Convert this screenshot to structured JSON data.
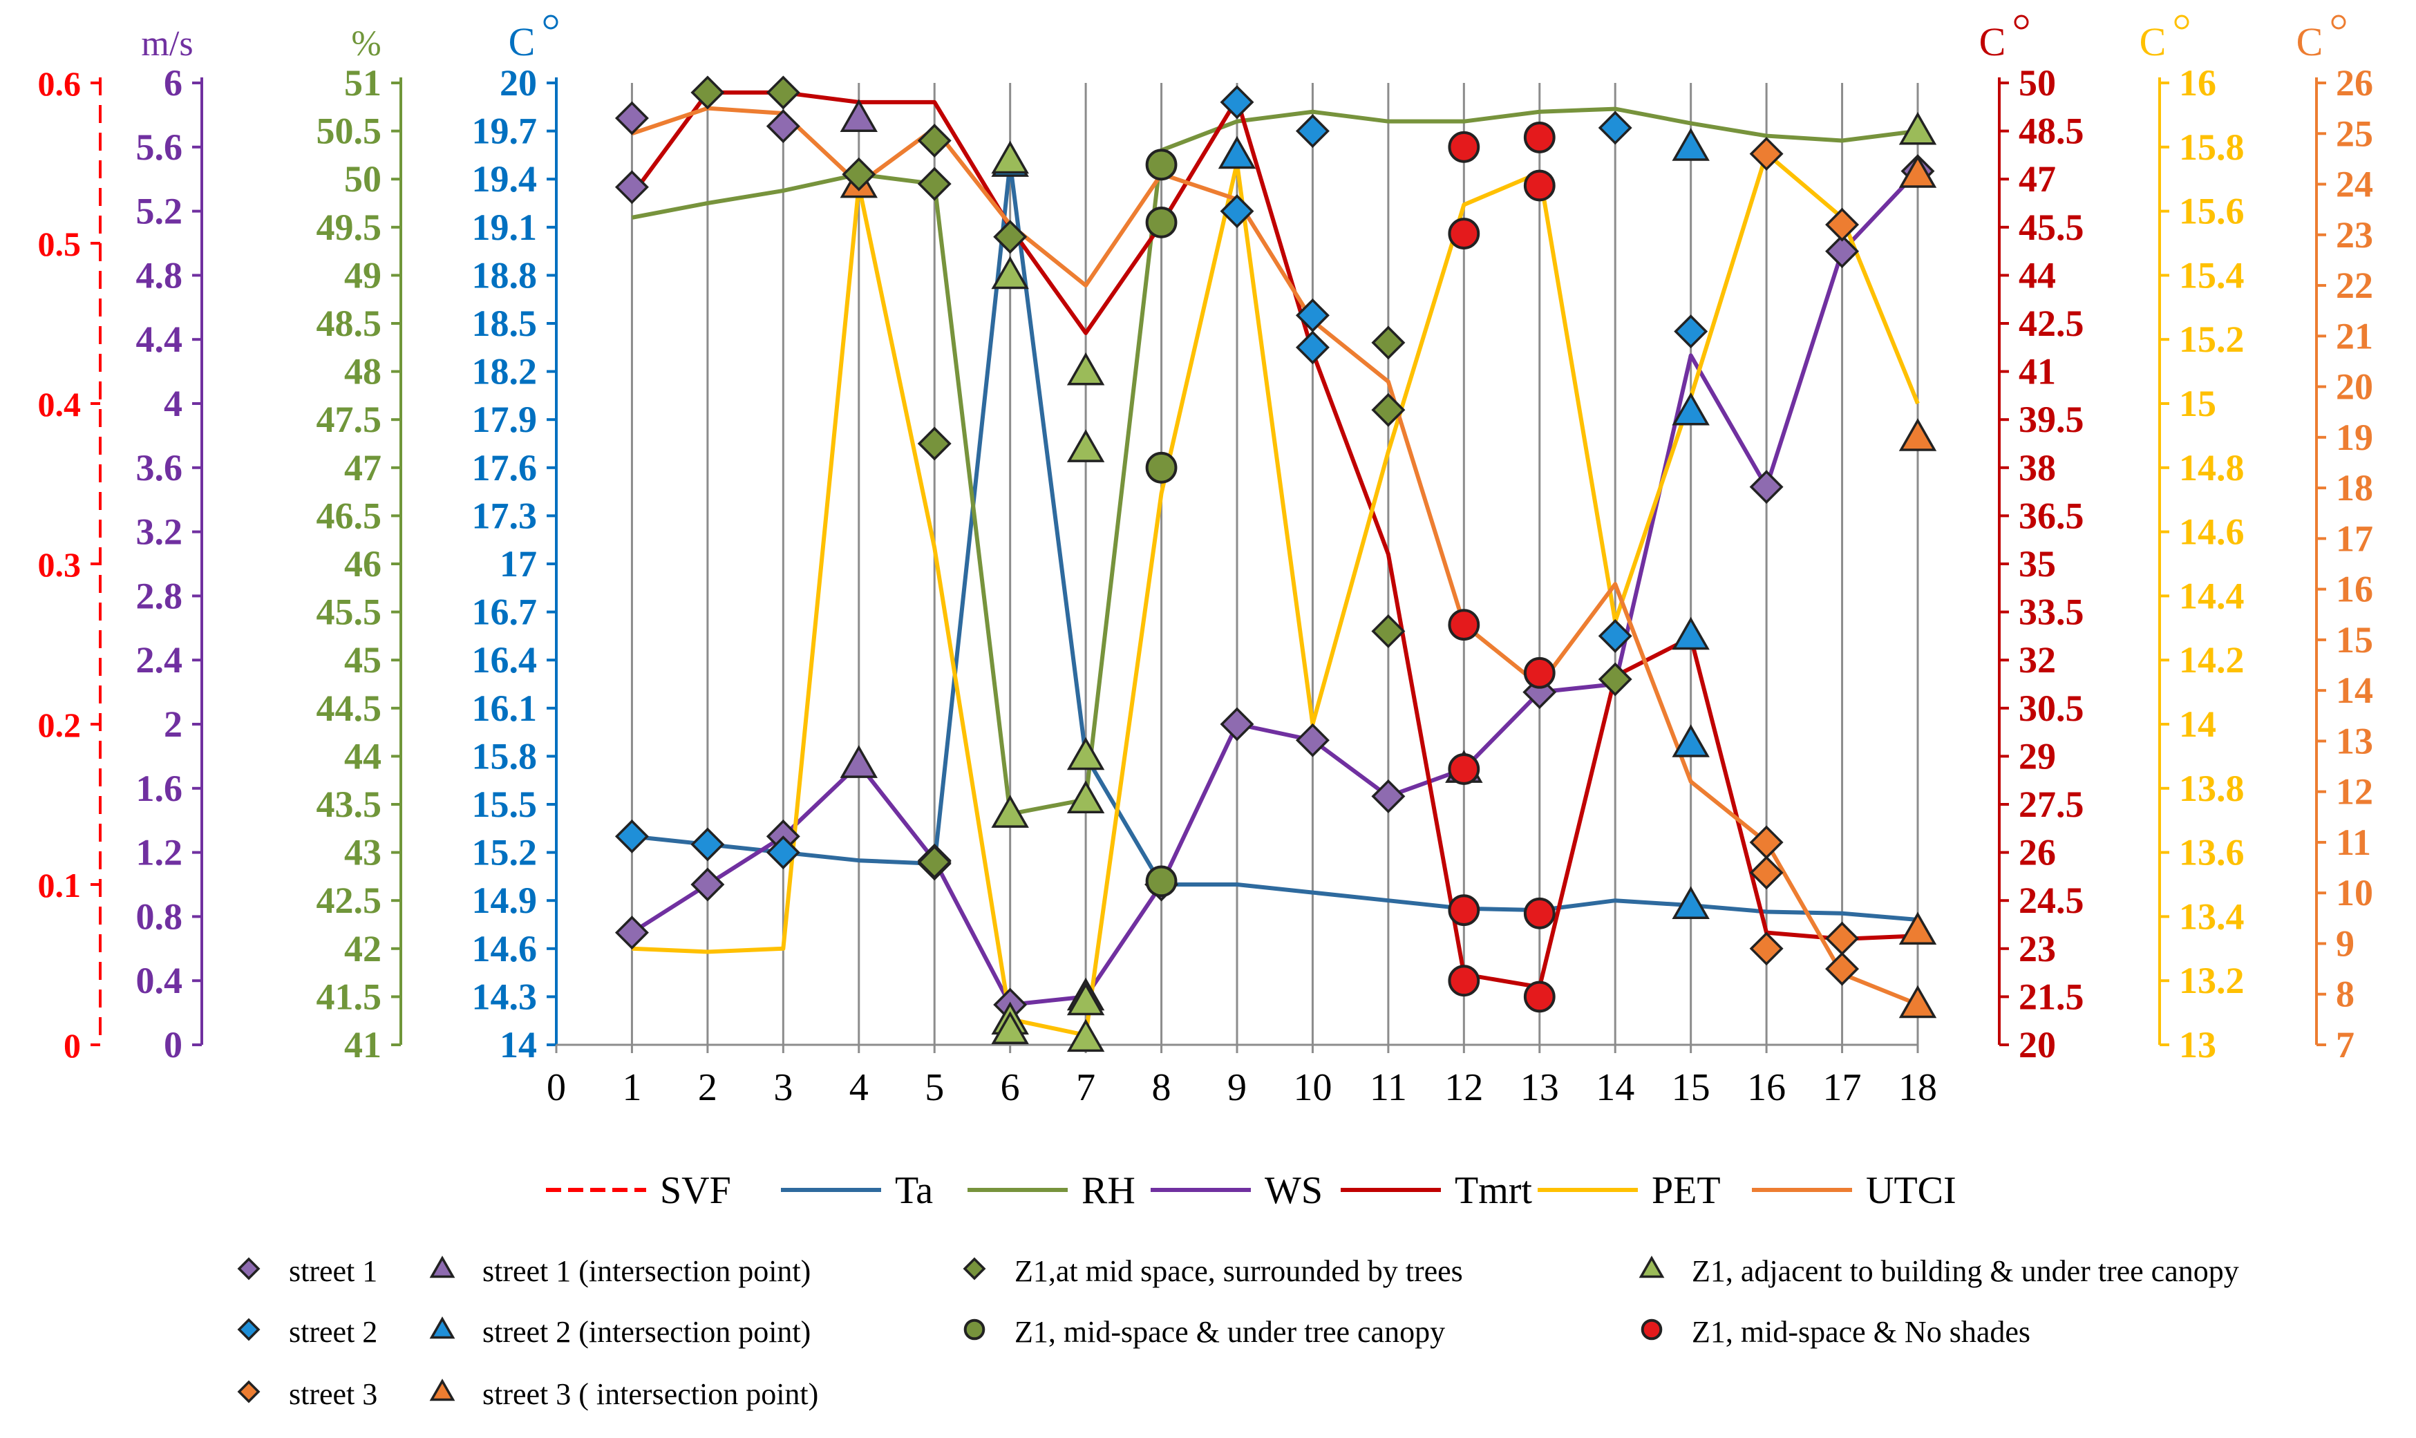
{
  "chart_data": {
    "type": "line",
    "x": [
      1,
      2,
      3,
      4,
      5,
      6,
      7,
      8,
      9,
      10,
      11,
      12,
      13,
      14,
      15,
      16,
      17,
      18
    ],
    "xticks": [
      "0",
      "1",
      "2",
      "3",
      "4",
      "5",
      "6",
      "7",
      "8",
      "9",
      "10",
      "11",
      "12",
      "13",
      "14",
      "15",
      "16",
      "17",
      "18"
    ],
    "xlim": [
      0,
      18
    ],
    "axes": [
      {
        "id": "svf",
        "label": "",
        "side": "left",
        "color": "#ff0000",
        "dashed": true,
        "min": 0,
        "max": 0.6,
        "ticks": [
          "0",
          "0.1",
          "0.2",
          "0.3",
          "0.4",
          "0.5",
          "0.6"
        ]
      },
      {
        "id": "ws",
        "label": "m/s",
        "side": "left",
        "color": "#7030a0",
        "dashed": false,
        "min": 0,
        "max": 6,
        "ticks": [
          "0",
          "0.4",
          "0.8",
          "1.2",
          "1.6",
          "2",
          "2.4",
          "2.8",
          "3.2",
          "3.6",
          "4",
          "4.4",
          "4.8",
          "5.2",
          "5.6",
          "6"
        ]
      },
      {
        "id": "rh",
        "label": "%",
        "side": "left",
        "color": "#70963a",
        "dashed": false,
        "min": 41,
        "max": 51,
        "ticks": [
          "41",
          "41.5",
          "42",
          "42.5",
          "43",
          "43.5",
          "44",
          "44.5",
          "45",
          "45.5",
          "46",
          "46.5",
          "47",
          "47.5",
          "48",
          "48.5",
          "49",
          "49.5",
          "50",
          "50.5",
          "51"
        ]
      },
      {
        "id": "ta",
        "label": "C",
        "side": "left",
        "color": "#0070c0",
        "dashed": false,
        "min": 14,
        "max": 20,
        "ticks": [
          "14",
          "14.3",
          "14.6",
          "14.9",
          "15.2",
          "15.5",
          "15.8",
          "16.1",
          "16.4",
          "16.7",
          "17",
          "17.3",
          "17.6",
          "17.9",
          "18.2",
          "18.5",
          "18.8",
          "19.1",
          "19.4",
          "19.7",
          "20"
        ]
      },
      {
        "id": "tmrt",
        "label": "C",
        "side": "right",
        "color": "#c00000",
        "dashed": false,
        "min": 20,
        "max": 50,
        "ticks": [
          "20",
          "21.5",
          "23",
          "24.5",
          "26",
          "27.5",
          "29",
          "30.5",
          "32",
          "33.5",
          "35",
          "36.5",
          "38",
          "39.5",
          "41",
          "42.5",
          "44",
          "45.5",
          "47",
          "48.5",
          "50"
        ]
      },
      {
        "id": "pet",
        "label": "C",
        "side": "right",
        "color": "#ffc000",
        "dashed": false,
        "min": 13,
        "max": 16,
        "ticks": [
          "13",
          "13.2",
          "13.4",
          "13.6",
          "13.8",
          "14",
          "14.2",
          "14.4",
          "14.6",
          "14.8",
          "15",
          "15.2",
          "15.4",
          "15.6",
          "15.8",
          "16"
        ]
      },
      {
        "id": "utci",
        "label": "C",
        "side": "right",
        "color": "#ed7d31",
        "dashed": false,
        "min": 7,
        "max": 26,
        "ticks": [
          "7",
          "8",
          "9",
          "10",
          "11",
          "12",
          "13",
          "14",
          "15",
          "16",
          "17",
          "18",
          "19",
          "20",
          "21",
          "22",
          "23",
          "24",
          "25",
          "26"
        ]
      }
    ],
    "series": [
      {
        "name": "Ta",
        "axis": "ta",
        "color": "#2e6a9e",
        "values": [
          15.3,
          15.25,
          15.2,
          15.15,
          15.13,
          19.5,
          15.8,
          15.0,
          15.0,
          14.95,
          14.9,
          14.85,
          14.84,
          14.9,
          14.87,
          14.83,
          14.82,
          14.78
        ]
      },
      {
        "name": "RH",
        "axis": "rh",
        "color": "#77933c",
        "values": [
          49.6,
          49.75,
          49.88,
          50.05,
          49.95,
          43.4,
          43.55,
          50.3,
          50.6,
          50.7,
          50.6,
          50.6,
          50.7,
          50.73,
          50.58,
          50.45,
          50.4,
          50.5
        ]
      },
      {
        "name": "WS",
        "axis": "ws",
        "color": "#7030a0",
        "values": [
          0.7,
          1.0,
          1.3,
          1.75,
          1.15,
          0.25,
          0.3,
          1.0,
          2.0,
          1.9,
          1.55,
          1.72,
          2.2,
          2.25,
          4.3,
          3.48,
          4.95,
          5.45
        ]
      },
      {
        "name": "Tmrt",
        "axis": "tmrt",
        "color": "#c00000",
        "values": [
          46.5,
          49.7,
          49.7,
          49.4,
          49.4,
          45.5,
          42.2,
          45.6,
          49.5,
          41.6,
          35.3,
          22.2,
          21.8,
          31.5,
          32.7,
          23.5,
          23.3,
          23.4
        ]
      },
      {
        "name": "PET",
        "axis": "pet",
        "color": "#ffc000",
        "values": [
          13.3,
          13.29,
          13.3,
          15.68,
          14.55,
          13.08,
          13.03,
          14.72,
          15.75,
          14.0,
          14.85,
          15.62,
          15.72,
          14.32,
          15.02,
          15.78,
          15.58,
          15.0
        ]
      },
      {
        "name": "UTCI",
        "axis": "utci",
        "color": "#ed7d31",
        "values": [
          25.0,
          25.5,
          25.4,
          24.0,
          25.1,
          23.2,
          22.0,
          24.2,
          23.7,
          21.3,
          20.1,
          15.3,
          14.1,
          16.1,
          12.2,
          11.0,
          8.4,
          7.8
        ]
      }
    ],
    "scatter_series": [
      {
        "name": "street 1",
        "marker": "diamond",
        "color": "#8e6bb0",
        "points": [
          {
            "x": 1,
            "axis": "ws",
            "y": 0.7
          },
          {
            "x": 2,
            "axis": "ws",
            "y": 1.0
          },
          {
            "x": 3,
            "axis": "ws",
            "y": 1.3
          },
          {
            "x": 5,
            "axis": "ws",
            "y": 1.15
          },
          {
            "x": 6,
            "axis": "ws",
            "y": 0.25
          },
          {
            "x": 8,
            "axis": "ws",
            "y": 1.0
          },
          {
            "x": 9,
            "axis": "ws",
            "y": 2.0
          },
          {
            "x": 10,
            "axis": "ws",
            "y": 1.9
          },
          {
            "x": 11,
            "axis": "ws",
            "y": 1.55
          },
          {
            "x": 13,
            "axis": "ws",
            "y": 2.2
          },
          {
            "x": 16,
            "axis": "ws",
            "y": 3.48
          },
          {
            "x": 17,
            "axis": "ws",
            "y": 4.95
          },
          {
            "x": 18,
            "axis": "ws",
            "y": 5.45
          },
          {
            "x": 1,
            "axis": "ws",
            "y": 5.78
          },
          {
            "x": 3,
            "axis": "ws",
            "y": 5.73
          },
          {
            "x": 1,
            "axis": "ws",
            "y": 5.35
          }
        ]
      },
      {
        "name": "street 1 (intersection point)",
        "marker": "triangle",
        "color": "#8e6bb0",
        "points": [
          {
            "x": 4,
            "axis": "ws",
            "y": 1.75
          },
          {
            "x": 7,
            "axis": "ws",
            "y": 0.3
          },
          {
            "x": 4,
            "axis": "ws",
            "y": 5.78
          },
          {
            "x": 12,
            "axis": "ws",
            "y": 1.72
          }
        ]
      },
      {
        "name": "street 2",
        "marker": "diamond",
        "color": "#1f8fd8",
        "points": [
          {
            "x": 1,
            "axis": "ta",
            "y": 15.3
          },
          {
            "x": 2,
            "axis": "ta",
            "y": 15.25
          },
          {
            "x": 3,
            "axis": "ta",
            "y": 15.2
          },
          {
            "x": 5,
            "axis": "ta",
            "y": 15.13
          },
          {
            "x": 9,
            "axis": "ta",
            "y": 19.88
          },
          {
            "x": 9,
            "axis": "ta",
            "y": 19.2
          },
          {
            "x": 10,
            "axis": "ta",
            "y": 18.55
          },
          {
            "x": 10,
            "axis": "ta",
            "y": 18.35
          },
          {
            "x": 10,
            "axis": "ta",
            "y": 19.7
          },
          {
            "x": 14,
            "axis": "ta",
            "y": 16.55
          },
          {
            "x": 14,
            "axis": "ta",
            "y": 19.72
          },
          {
            "x": 15,
            "axis": "ta",
            "y": 18.45
          }
        ]
      },
      {
        "name": "street 2 (intersection point)",
        "marker": "triangle",
        "color": "#1f8fd8",
        "points": [
          {
            "x": 6,
            "axis": "ta",
            "y": 19.5
          },
          {
            "x": 9,
            "axis": "ta",
            "y": 19.55
          },
          {
            "x": 15,
            "axis": "ta",
            "y": 17.95
          },
          {
            "x": 15,
            "axis": "ta",
            "y": 19.6
          },
          {
            "x": 15,
            "axis": "ta",
            "y": 15.88
          },
          {
            "x": 15,
            "axis": "ta",
            "y": 16.55
          },
          {
            "x": 15,
            "axis": "ta",
            "y": 14.87
          }
        ]
      },
      {
        "name": "street 3",
        "marker": "diamond",
        "color": "#ed7d31",
        "points": [
          {
            "x": 16,
            "axis": "utci",
            "y": 11.0
          },
          {
            "x": 16,
            "axis": "utci",
            "y": 8.9
          },
          {
            "x": 16,
            "axis": "utci",
            "y": 10.4
          },
          {
            "x": 17,
            "axis": "utci",
            "y": 8.5
          },
          {
            "x": 17,
            "axis": "utci",
            "y": 9.1
          },
          {
            "x": 17,
            "axis": "utci",
            "y": 23.2
          },
          {
            "x": 16,
            "axis": "utci",
            "y": 24.6
          }
        ]
      },
      {
        "name": "street 3 ( intersection point)",
        "marker": "triangle",
        "color": "#ed7d31",
        "points": [
          {
            "x": 18,
            "axis": "utci",
            "y": 7.8
          },
          {
            "x": 18,
            "axis": "utci",
            "y": 9.25
          },
          {
            "x": 18,
            "axis": "utci",
            "y": 19.0
          },
          {
            "x": 18,
            "axis": "utci",
            "y": 24.2
          },
          {
            "x": 4,
            "axis": "utci",
            "y": 24.0
          }
        ]
      },
      {
        "name": "Z1,at mid space, surrounded by trees",
        "marker": "diamond",
        "color": "#77933c",
        "points": [
          {
            "x": 5,
            "axis": "rh",
            "y": 50.4
          },
          {
            "x": 5,
            "axis": "rh",
            "y": 49.95
          },
          {
            "x": 5,
            "axis": "rh",
            "y": 47.25
          },
          {
            "x": 5,
            "axis": "rh",
            "y": 42.9
          },
          {
            "x": 6,
            "axis": "rh",
            "y": 49.4
          },
          {
            "x": 11,
            "axis": "rh",
            "y": 47.6
          },
          {
            "x": 11,
            "axis": "rh",
            "y": 48.3
          },
          {
            "x": 11,
            "axis": "rh",
            "y": 45.3
          },
          {
            "x": 4,
            "axis": "rh",
            "y": 50.05
          },
          {
            "x": 2,
            "axis": "rh",
            "y": 50.9
          },
          {
            "x": 3,
            "axis": "rh",
            "y": 50.9
          },
          {
            "x": 14,
            "axis": "rh",
            "y": 44.8
          }
        ]
      },
      {
        "name": "Z1, adjacent to building & under tree canopy",
        "marker": "triangle",
        "color": "#9bbb59",
        "points": [
          {
            "x": 6,
            "axis": "rh",
            "y": 50.2
          },
          {
            "x": 6,
            "axis": "rh",
            "y": 49.0
          },
          {
            "x": 6,
            "axis": "rh",
            "y": 41.25
          },
          {
            "x": 6,
            "axis": "rh",
            "y": 41.15
          },
          {
            "x": 6,
            "axis": "rh",
            "y": 43.4
          },
          {
            "x": 7,
            "axis": "rh",
            "y": 48.0
          },
          {
            "x": 7,
            "axis": "rh",
            "y": 47.2
          },
          {
            "x": 7,
            "axis": "rh",
            "y": 41.45
          },
          {
            "x": 7,
            "axis": "rh",
            "y": 41.07
          },
          {
            "x": 7,
            "axis": "rh",
            "y": 43.55
          },
          {
            "x": 7,
            "axis": "rh",
            "y": 44.0
          },
          {
            "x": 18,
            "axis": "rh",
            "y": 50.5
          }
        ]
      },
      {
        "name": "Z1, mid-space & under tree canopy",
        "marker": "circle",
        "color": "#77933c",
        "points": [
          {
            "x": 8,
            "axis": "rh",
            "y": 50.15
          },
          {
            "x": 8,
            "axis": "rh",
            "y": 49.55
          },
          {
            "x": 8,
            "axis": "rh",
            "y": 47.0
          },
          {
            "x": 8,
            "axis": "rh",
            "y": 42.7
          }
        ]
      },
      {
        "name": "Z1, mid-space & No shades",
        "marker": "circle",
        "color": "#e41a1c",
        "points": [
          {
            "x": 12,
            "axis": "tmrt",
            "y": 48.0
          },
          {
            "x": 12,
            "axis": "tmrt",
            "y": 45.3
          },
          {
            "x": 12,
            "axis": "tmrt",
            "y": 33.1
          },
          {
            "x": 12,
            "axis": "tmrt",
            "y": 28.6
          },
          {
            "x": 12,
            "axis": "tmrt",
            "y": 24.2
          },
          {
            "x": 12,
            "axis": "tmrt",
            "y": 22.0
          },
          {
            "x": 13,
            "axis": "tmrt",
            "y": 48.3
          },
          {
            "x": 13,
            "axis": "tmrt",
            "y": 46.8
          },
          {
            "x": 13,
            "axis": "tmrt",
            "y": 31.6
          },
          {
            "x": 13,
            "axis": "tmrt",
            "y": 24.1
          },
          {
            "x": 13,
            "axis": "tmrt",
            "y": 21.5
          }
        ]
      }
    ],
    "legend_lines": [
      "SVF",
      "Ta",
      "RH",
      "WS",
      "Tmrt",
      "PET",
      "UTCI"
    ],
    "legend_markers": [
      "street 1",
      "street 1 (intersection point)",
      "Z1,at mid space, surrounded by trees",
      "Z1, adjacent to building & under tree canopy",
      "street 2",
      "street 2 (intersection point)",
      "Z1, mid-space & under tree canopy",
      "Z1, mid-space & No shades",
      "street 3",
      "street 3 ( intersection point)"
    ],
    "title": "",
    "xlabel": "",
    "grid": "vertical"
  }
}
